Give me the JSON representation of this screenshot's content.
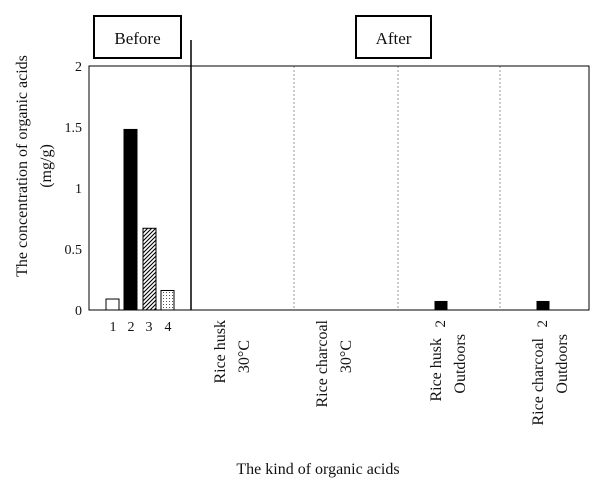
{
  "chart_data": {
    "type": "bar",
    "title": "",
    "ylabel": [
      "The concentration of organic acids",
      "(mg/g)"
    ],
    "xlabel": "The kind of organic acids",
    "ylim": [
      0,
      2
    ],
    "y_ticks": [
      {
        "value": 0,
        "label": "0"
      },
      {
        "value": 0.5,
        "label": "0.5"
      },
      {
        "value": 1,
        "label": "1"
      },
      {
        "value": 1.5,
        "label": "1.5"
      },
      {
        "value": 2,
        "label": "2"
      }
    ],
    "grid": "dashed vertical separators between After groups",
    "sections": [
      {
        "label": "Before"
      },
      {
        "label": "After"
      }
    ],
    "before_bars": [
      {
        "category": "1",
        "value": 0.09,
        "fill": "white"
      },
      {
        "category": "2",
        "value": 1.48,
        "fill": "black"
      },
      {
        "category": "3",
        "value": 0.67,
        "fill": "hatched"
      },
      {
        "category": "4",
        "value": 0.16,
        "fill": "dotted"
      }
    ],
    "after_groups": [
      {
        "label_line1": "Rice husk",
        "label_line2": "30°C",
        "bar_category": "",
        "value": 0
      },
      {
        "label_line1": "Rice charcoal",
        "label_line2": "30°C",
        "bar_category": "",
        "value": 0
      },
      {
        "label_line1": "Rice husk",
        "label_line2": "Outdoors",
        "bar_category": "2",
        "value": 0.07
      },
      {
        "label_line1": "Rice charcoal",
        "label_line2": "Outdoors",
        "bar_category": "2",
        "value": 0.07
      }
    ],
    "colors": {
      "axis": "#000000",
      "grid": "#9a9a9a",
      "bar_dark": "#000000",
      "bar_light": "#ffffff"
    }
  }
}
